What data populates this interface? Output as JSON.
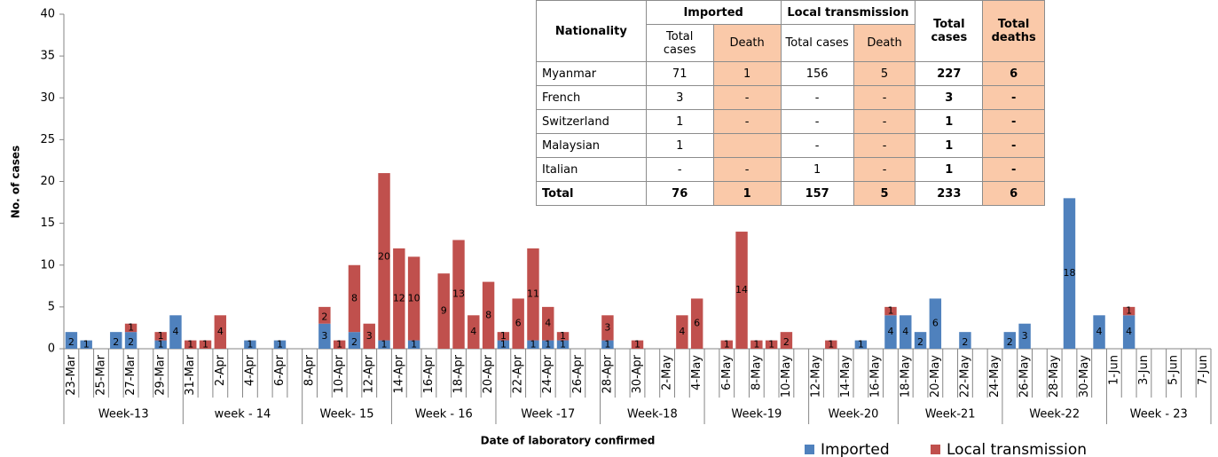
{
  "chart_data": {
    "type": "bar",
    "y_label": "No. of cases",
    "x_label": "Date of laboratory confirmed",
    "categories": [
      "23-Mar",
      null,
      "25-Mar",
      null,
      "27-Mar",
      null,
      "29-Mar",
      null,
      "31-Mar",
      null,
      "2-Apr",
      null,
      "4-Apr",
      null,
      "6-Apr",
      null,
      "8-Apr",
      null,
      "10-Apr",
      null,
      "12-Apr",
      null,
      "14-Apr",
      null,
      "16-Apr",
      null,
      "18-Apr",
      null,
      "20-Apr",
      null,
      "22-Apr",
      null,
      "24-Apr",
      null,
      "26-Apr",
      null,
      "28-Apr",
      null,
      "30-Apr",
      null,
      "2-May",
      null,
      "4-May",
      null,
      "6-May",
      null,
      "8-May",
      null,
      "10-May",
      null,
      "12-May",
      null,
      "14-May",
      null,
      "16-May",
      null,
      "18-May",
      null,
      "20-May",
      null,
      "22-May",
      null,
      "24-May",
      null,
      "26-May",
      null,
      "28-May",
      null,
      "30-May",
      null,
      "1-Jun",
      null,
      "3-Jun",
      null,
      "5-Jun",
      null,
      "7-Jun"
    ],
    "weeks": [
      "Week-13",
      "week - 14",
      "Week- 15",
      "Week - 16",
      "Week -17",
      "Week-18",
      "Week-19",
      "Week-20",
      "Week-21",
      "Week-22",
      "Week - 23"
    ],
    "stacked": true,
    "series": [
      {
        "name": "Imported",
        "color": "#4f81bd",
        "values": [
          2,
          1,
          null,
          2,
          2,
          null,
          1,
          4,
          null,
          null,
          null,
          null,
          1,
          null,
          1,
          null,
          null,
          3,
          null,
          2,
          null,
          1,
          null,
          1,
          null,
          null,
          null,
          null,
          null,
          1,
          null,
          1,
          1,
          1,
          null,
          null,
          1,
          null,
          null,
          null,
          null,
          null,
          null,
          null,
          null,
          null,
          null,
          null,
          null,
          null,
          null,
          null,
          null,
          1,
          null,
          4,
          4,
          2,
          6,
          null,
          2,
          null,
          null,
          2,
          3,
          null,
          null,
          18,
          null,
          4,
          null,
          4,
          null,
          null,
          null,
          null,
          null
        ]
      },
      {
        "name": "Local transmission",
        "color": "#c0504d",
        "values": [
          null,
          null,
          null,
          null,
          1,
          null,
          1,
          null,
          1,
          1,
          4,
          null,
          null,
          null,
          null,
          null,
          null,
          2,
          1,
          8,
          3,
          20,
          12,
          10,
          null,
          9,
          13,
          4,
          8,
          1,
          6,
          11,
          4,
          1,
          null,
          null,
          3,
          null,
          1,
          null,
          null,
          4,
          6,
          null,
          1,
          14,
          1,
          1,
          2,
          null,
          null,
          1,
          null,
          null,
          null,
          1,
          null,
          null,
          null,
          null,
          null,
          null,
          null,
          null,
          null,
          null,
          null,
          null,
          null,
          null,
          null,
          1,
          null,
          null,
          null,
          null,
          null
        ]
      }
    ],
    "ylim": [
      0,
      40
    ],
    "yticks": [
      0,
      5,
      10,
      15,
      20,
      25,
      30,
      35,
      40
    ],
    "grid": false,
    "legend": "bottom-right"
  },
  "table": {
    "header": {
      "nationality": "Nationality",
      "imported": "Imported",
      "local": "Local transmission",
      "total_cases": "Total cases",
      "total_deaths": "Total deaths",
      "sub": [
        "Total cases",
        "Death",
        "Total cases",
        "Death"
      ]
    },
    "rows": [
      [
        "Myanmar",
        71,
        1,
        156,
        5,
        227,
        6
      ],
      [
        "French",
        3,
        "-",
        "-",
        "-",
        3,
        "-"
      ],
      [
        "Switzerland",
        1,
        "-",
        "-",
        "-",
        1,
        "-"
      ],
      [
        "Malaysian",
        1,
        null,
        "-",
        "-",
        1,
        "-"
      ],
      [
        "Italian",
        "-",
        "-",
        1,
        "-",
        1,
        "-"
      ],
      [
        "Total",
        76,
        1,
        157,
        5,
        233,
        6
      ]
    ]
  }
}
